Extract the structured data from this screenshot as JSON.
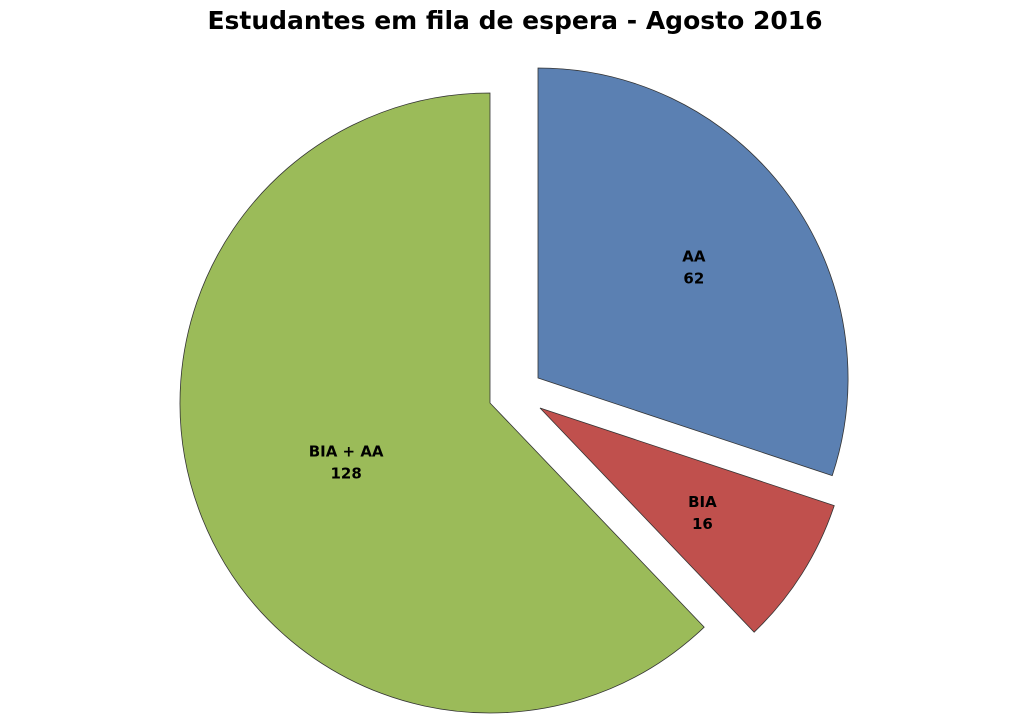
{
  "chart_data": {
    "type": "pie",
    "title": "Estudantes em fila de espera -  Agosto 2016",
    "slices": [
      {
        "label": "AA",
        "value": 62,
        "color": "#5b80b2",
        "exploded": true
      },
      {
        "label": "BIA",
        "value": 16,
        "color": "#c0504d",
        "exploded": true
      },
      {
        "label": "BIA + AA",
        "value": 128,
        "color": "#9bbb59",
        "exploded": false
      }
    ],
    "start_angle": "12 o'clock",
    "direction": "clockwise",
    "legend": "none"
  }
}
